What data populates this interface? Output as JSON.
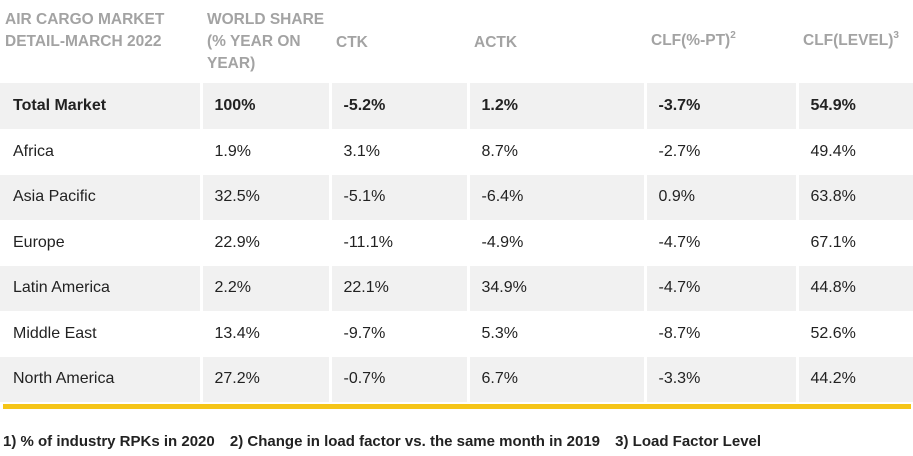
{
  "table": {
    "headers": [
      {
        "lines": [
          "AIR CARGO MARKET",
          "DETAIL-MARCH 2022"
        ],
        "sup": ""
      },
      {
        "lines": [
          "WORLD SHARE",
          "(% YEAR ON",
          "YEAR)"
        ],
        "sup": ""
      },
      {
        "lines": [
          "CTK"
        ],
        "sup": ""
      },
      {
        "lines": [
          "ACTK"
        ],
        "sup": ""
      },
      {
        "lines": [
          "CLF(%-PT)"
        ],
        "sup": "2"
      },
      {
        "lines": [
          "CLF(LEVEL)"
        ],
        "sup": "3"
      }
    ],
    "rows": [
      {
        "region": "Total Market",
        "world_share": "100%",
        "ctk": "-5.2%",
        "actk": "1.2%",
        "clf_pt": "-3.7%",
        "clf_level": "54.9%"
      },
      {
        "region": "Africa",
        "world_share": "1.9%",
        "ctk": "3.1%",
        "actk": "8.7%",
        "clf_pt": "-2.7%",
        "clf_level": "49.4%"
      },
      {
        "region": "Asia Pacific",
        "world_share": "32.5%",
        "ctk": "-5.1%",
        "actk": "-6.4%",
        "clf_pt": "0.9%",
        "clf_level": "63.8%"
      },
      {
        "region": "Europe",
        "world_share": "22.9%",
        "ctk": "-11.1%",
        "actk": "-4.9%",
        "clf_pt": "-4.7%",
        "clf_level": "67.1%"
      },
      {
        "region": "Latin America",
        "world_share": "2.2%",
        "ctk": "22.1%",
        "actk": "34.9%",
        "clf_pt": "-4.7%",
        "clf_level": "44.8%"
      },
      {
        "region": "Middle East",
        "world_share": "13.4%",
        "ctk": "-9.7%",
        "actk": "5.3%",
        "clf_pt": "-8.7%",
        "clf_level": "52.6%"
      },
      {
        "region": "North America",
        "world_share": "27.2%",
        "ctk": "-0.7%",
        "actk": "6.7%",
        "clf_pt": "-3.3%",
        "clf_level": "44.2%"
      }
    ]
  },
  "footnotes": [
    "1) % of industry RPKs in 2020",
    "2) Change in load factor vs. the same month in 2019",
    "3) Load Factor Level"
  ],
  "colors": {
    "accent_bar": "#f5c518",
    "header_text": "#a3a3a3",
    "row_shade": "#f1f1f1"
  }
}
